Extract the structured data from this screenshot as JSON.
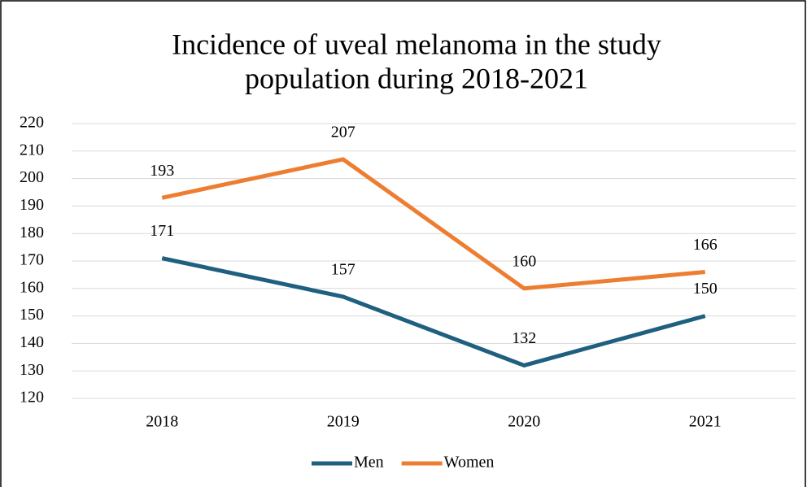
{
  "chart_data": {
    "type": "line",
    "title": [
      "Incidence of uveal melanoma in the study",
      "population during 2018-2021"
    ],
    "categories": [
      "2018",
      "2019",
      "2020",
      "2021"
    ],
    "series": [
      {
        "name": "Men",
        "color": "#1f5f7f",
        "values": [
          171,
          157,
          132,
          150
        ]
      },
      {
        "name": "Women",
        "color": "#ed7d31",
        "values": [
          193,
          207,
          160,
          166
        ]
      }
    ],
    "ylim": [
      120,
      220
    ],
    "yticks": [
      120,
      130,
      140,
      150,
      160,
      170,
      180,
      190,
      200,
      210,
      220
    ],
    "grid": true,
    "legend": "bottom"
  }
}
